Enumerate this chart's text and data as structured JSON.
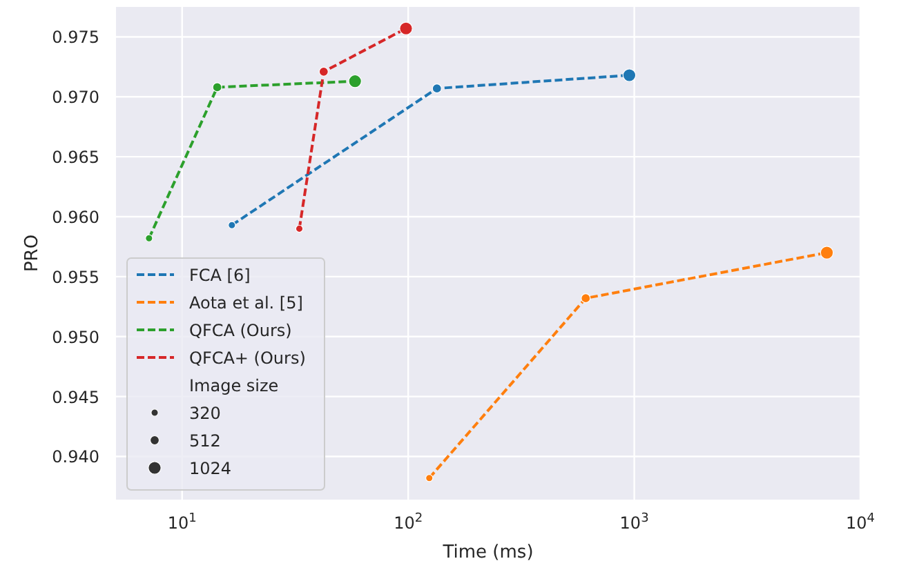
{
  "chart_data": {
    "type": "line",
    "xlabel": "Time (ms)",
    "ylabel": "PRO",
    "log": "x",
    "xlim": [
      5.1,
      10000
    ],
    "ylim": [
      0.9364,
      0.9775
    ],
    "xticks": [
      {
        "value": 10,
        "label": "10$^{1}$"
      },
      {
        "value": 100,
        "label": "10$^{2}$"
      },
      {
        "value": 1000,
        "label": "10$^{3}$"
      },
      {
        "value": 10000,
        "label": "10$^{4}$"
      }
    ],
    "yticks": [
      {
        "value": 0.94,
        "label": "0.940"
      },
      0.945,
      {
        "value": 0.95,
        "label": "0.950"
      },
      0.955,
      {
        "value": 0.96,
        "label": "0.960"
      },
      0.965,
      {
        "value": 0.97,
        "label": "0.970"
      },
      0.975
    ],
    "grid": true,
    "legend": "bottom left",
    "legend_title": "Image size",
    "size_legend": [
      320,
      512,
      1024
    ],
    "line_style": "dashed",
    "series": [
      {
        "name": "FCA [6]",
        "color": "#1f77b4",
        "x": [
          16.6,
          134,
          951
        ],
        "values": [
          0.9593,
          0.9707,
          0.9718
        ]
      },
      {
        "name": "Aota et al. [5]",
        "color": "#ff7f0e",
        "x": [
          124,
          610,
          7110
        ],
        "values": [
          0.9382,
          0.9532,
          0.957
        ]
      },
      {
        "name": "QFCA (Ours)",
        "color": "#2ca02c",
        "x": [
          7.14,
          14.3,
          58.2
        ],
        "values": [
          0.9582,
          0.9708,
          0.9713
        ]
      },
      {
        "name": "QFCA+ (Ours)",
        "color": "#d62728",
        "x": [
          33,
          42.3,
          97.8
        ],
        "values": [
          0.959,
          0.9721,
          0.9757
        ]
      },
      {
        "type": "bubble",
        "color": "#1f77b4",
        "x": [
          16.6,
          134,
          951
        ],
        "values": [
          0.9593,
          0.9707,
          0.9718
        ],
        "sizes": [
          320,
          512,
          1024
        ]
      },
      {
        "type": "bubble",
        "color": "#ff7f0e",
        "x": [
          124,
          610,
          7110
        ],
        "values": [
          0.9382,
          0.9532,
          0.957
        ],
        "sizes": [
          320,
          512,
          1024
        ]
      },
      {
        "type": "bubble",
        "color": "#2ca02c",
        "x": [
          7.14,
          14.3,
          58.2
        ],
        "values": [
          0.9582,
          0.9708,
          0.9713
        ],
        "sizes": [
          320,
          512,
          1024
        ]
      },
      {
        "type": "bubble",
        "color": "#d62728",
        "x": [
          33,
          42.3,
          97.8
        ],
        "values": [
          0.959,
          0.9721,
          0.9757
        ],
        "sizes": [
          320,
          512,
          1024
        ]
      }
    ]
  }
}
